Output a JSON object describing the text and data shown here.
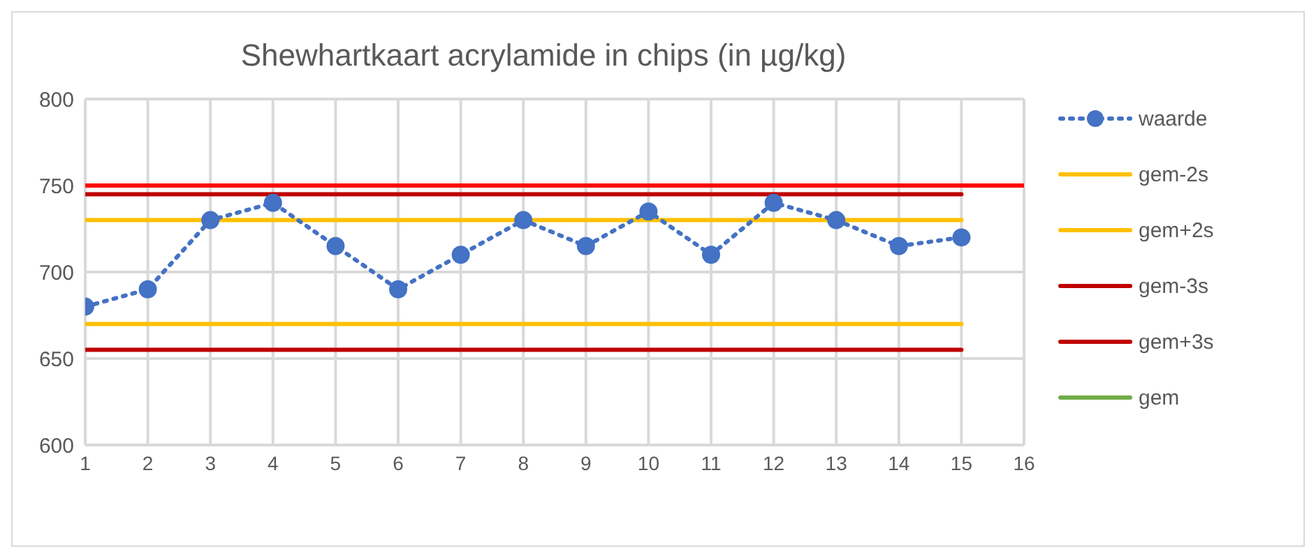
{
  "chart_data": {
    "type": "line",
    "title": "Shewhartkaart acrylamide in chips (in  µg/kg)",
    "x": [
      1,
      2,
      3,
      4,
      5,
      6,
      7,
      8,
      9,
      10,
      11,
      12,
      13,
      14,
      15
    ],
    "series": [
      {
        "name": "waarde",
        "color": "#4472c4",
        "marker": "circle",
        "line_style": "dotted",
        "values": [
          680,
          690,
          730,
          740,
          715,
          690,
          710,
          730,
          715,
          735,
          710,
          740,
          730,
          715,
          720
        ]
      },
      {
        "name": "gem-2s",
        "color": "#ffc000",
        "values": [
          670,
          670,
          670,
          670,
          670,
          670,
          670,
          670,
          670,
          670,
          670,
          670,
          670,
          670,
          670
        ]
      },
      {
        "name": "gem+2s",
        "color": "#ffc000",
        "values": [
          730,
          730,
          730,
          730,
          730,
          730,
          730,
          730,
          730,
          730,
          730,
          730,
          730,
          730,
          730
        ]
      },
      {
        "name": "gem-3s",
        "color": "#c00000",
        "values": [
          655,
          655,
          655,
          655,
          655,
          655,
          655,
          655,
          655,
          655,
          655,
          655,
          655,
          655,
          655
        ]
      },
      {
        "name": "gem+3s",
        "color": "#c00000",
        "values": [
          745,
          745,
          745,
          745,
          745,
          745,
          745,
          745,
          745,
          745,
          745,
          745,
          745,
          745,
          745
        ]
      },
      {
        "name": "gem",
        "color": "#70ad47",
        "values": [
          null,
          null,
          null,
          null,
          null,
          null,
          null,
          null,
          null,
          null,
          null,
          null,
          null,
          null,
          null
        ]
      }
    ],
    "ref_lines": [
      {
        "axis": "y",
        "value": 750,
        "color": "#ff0000"
      }
    ],
    "xlim": [
      1,
      16
    ],
    "xticks": [
      1,
      2,
      3,
      4,
      5,
      6,
      7,
      8,
      9,
      10,
      11,
      12,
      13,
      14,
      15,
      16
    ],
    "ylim": [
      600,
      800
    ],
    "yticks": [
      600,
      650,
      700,
      750,
      800
    ],
    "grid": true,
    "legend": "right",
    "marker": "none",
    "line_style": "solid"
  }
}
